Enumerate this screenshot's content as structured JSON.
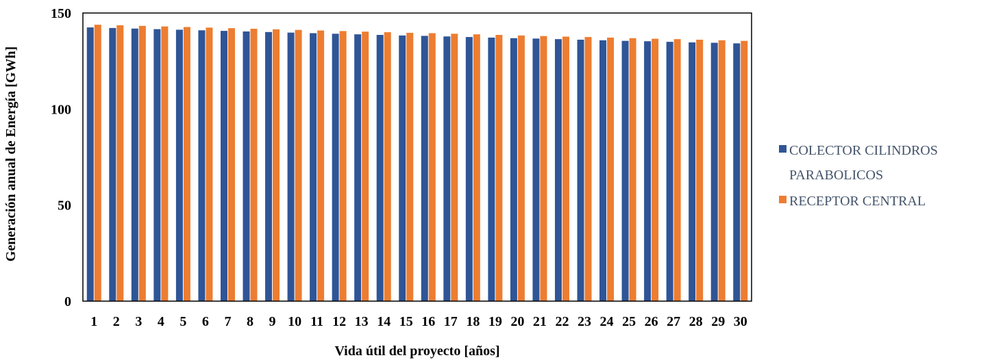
{
  "chart_data": {
    "type": "bar",
    "title": "",
    "xlabel": "Vida útil del proyecto [años]",
    "ylabel": "Generación anual de Energía [GWh]",
    "ylim": [
      0,
      150
    ],
    "yticks": [
      0,
      50,
      100,
      150
    ],
    "grid": false,
    "legend_position": "right",
    "categories": [
      "1",
      "2",
      "3",
      "4",
      "5",
      "6",
      "7",
      "8",
      "9",
      "10",
      "11",
      "12",
      "13",
      "14",
      "15",
      "16",
      "17",
      "18",
      "19",
      "20",
      "21",
      "22",
      "23",
      "24",
      "25",
      "26",
      "27",
      "28",
      "29",
      "30"
    ],
    "series": [
      {
        "name": "COLECTOR CILINDROS PARABOLICOS",
        "color": "#2F5597",
        "values": [
          142.5,
          142.2,
          141.9,
          141.6,
          141.3,
          141.0,
          140.7,
          140.4,
          140.1,
          139.8,
          139.5,
          139.2,
          138.9,
          138.6,
          138.3,
          138.1,
          137.8,
          137.5,
          137.2,
          136.9,
          136.7,
          136.4,
          136.1,
          135.8,
          135.5,
          135.3,
          135.0,
          134.7,
          134.5,
          134.2
        ]
      },
      {
        "name": "RECEPTOR CENTRAL",
        "color": "#ED7D31",
        "values": [
          143.9,
          143.6,
          143.3,
          143.0,
          142.7,
          142.4,
          142.1,
          141.8,
          141.5,
          141.2,
          140.9,
          140.6,
          140.3,
          140.0,
          139.7,
          139.5,
          139.2,
          138.9,
          138.6,
          138.3,
          138.0,
          137.7,
          137.5,
          137.2,
          136.9,
          136.6,
          136.4,
          136.1,
          135.8,
          135.5
        ]
      }
    ]
  },
  "legend": {
    "series1_line1": "COLECTOR CILINDROS",
    "series1_line2": "PARABOLICOS",
    "series2_line1": "RECEPTOR CENTRAL"
  }
}
